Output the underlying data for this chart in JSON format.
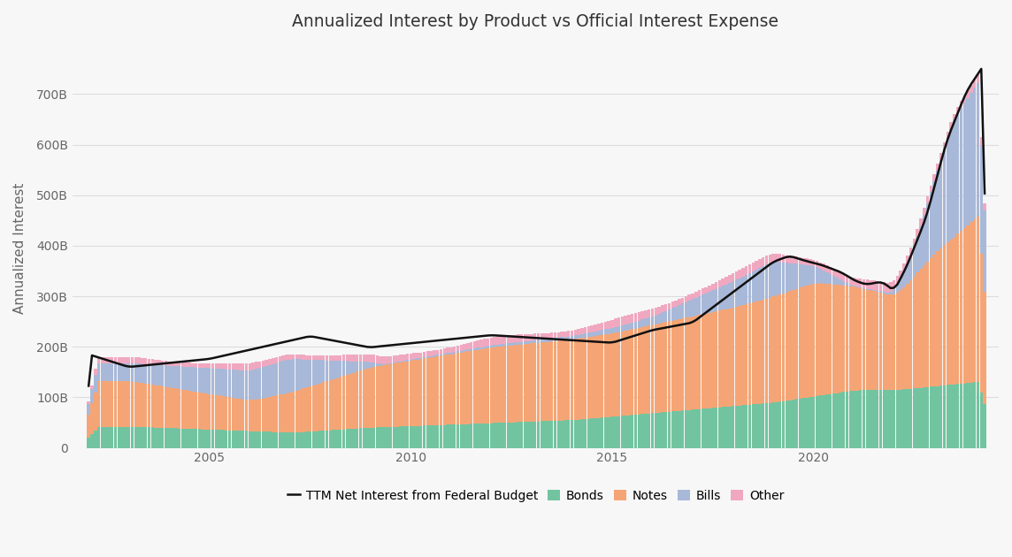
{
  "title": "Annualized Interest by Product vs Official Interest Expense",
  "ylabel": "Annualized Interest",
  "background_color": "#f7f7f7",
  "colors": {
    "Bonds": "#72c4a0",
    "Notes": "#f5a575",
    "Bills": "#a8b8d8",
    "Other": "#f0a8c0",
    "TTM": "#111111"
  },
  "legend_labels": [
    "Bonds",
    "Notes",
    "Bills",
    "Other",
    "TTM Net Interest from Federal Budget"
  ],
  "yticks": [
    0,
    100000000000,
    200000000000,
    300000000000,
    400000000000,
    500000000000,
    600000000000,
    700000000000
  ],
  "ytick_labels": [
    "0",
    "100B",
    "200B",
    "300B",
    "400B",
    "500B",
    "600B",
    "700B"
  ],
  "ylim": [
    0,
    790000000000
  ],
  "xlim_left": 2001.6,
  "xlim_right": 2024.6
}
